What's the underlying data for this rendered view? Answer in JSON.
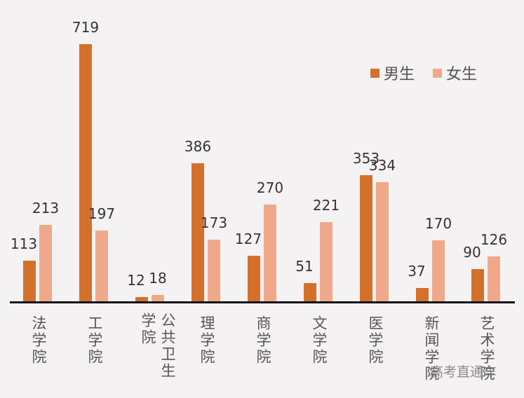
{
  "chart_data": {
    "type": "bar",
    "title": "",
    "xlabel": "",
    "ylabel": "",
    "categories": [
      "法学院",
      "工学院",
      "公共卫生学院",
      "理学院",
      "商学院",
      "文学院",
      "医学院",
      "新闻学院",
      "艺术学院"
    ],
    "series": [
      {
        "name": "男生",
        "color": "#d4702c",
        "values": [
          113,
          719,
          12,
          386,
          127,
          51,
          353,
          37,
          90
        ]
      },
      {
        "name": "女生",
        "color": "#f0a88a",
        "values": [
          213,
          197,
          18,
          173,
          270,
          221,
          334,
          170,
          126
        ]
      }
    ],
    "ylim": [
      0,
      719
    ],
    "grid": false,
    "legend_position": "top-right",
    "data_labels": true
  },
  "legend": {
    "male": "男生",
    "female": "女生"
  },
  "watermark": "高考直通车"
}
